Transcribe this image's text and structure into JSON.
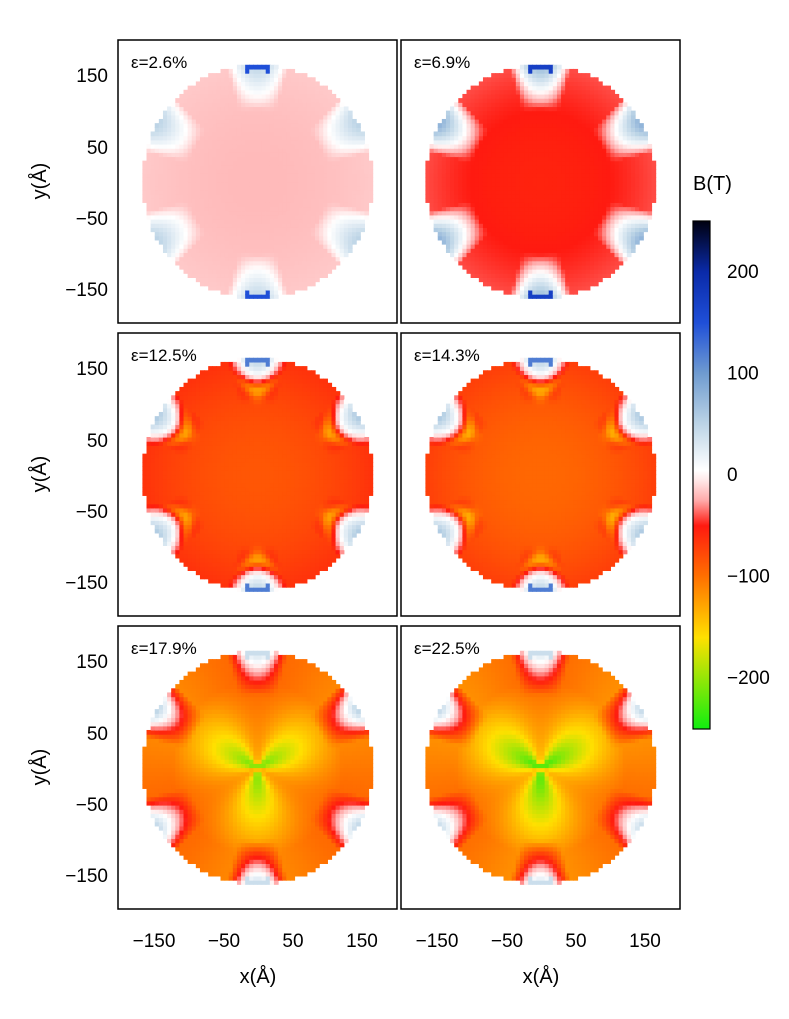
{
  "chart_data": {
    "type": "heatmap",
    "colorbar": {
      "title": "B(T)",
      "range": [
        -250,
        250
      ],
      "ticks": [
        200,
        100,
        0,
        -100,
        -200
      ],
      "tick_labels": [
        "200",
        "100",
        "0",
        "−100",
        "−200"
      ],
      "stops": [
        {
          "value": 250,
          "color": "#000010"
        },
        {
          "value": 200,
          "color": "#0a2aa8"
        },
        {
          "value": 150,
          "color": "#1f4fd8"
        },
        {
          "value": 100,
          "color": "#6f9bd0"
        },
        {
          "value": 50,
          "color": "#bcd4e6"
        },
        {
          "value": 5,
          "color": "#ffffff"
        },
        {
          "value": -5,
          "color": "#ffe8e8"
        },
        {
          "value": -25,
          "color": "#ffaaaa"
        },
        {
          "value": -50,
          "color": "#ff1a10"
        },
        {
          "value": -100,
          "color": "#ff7000"
        },
        {
          "value": -160,
          "color": "#ffe000"
        },
        {
          "value": -250,
          "color": "#10ee10"
        }
      ]
    },
    "xlabel": "x(Å)",
    "ylabel": "y(Å)",
    "xlim": [
      -200,
      200
    ],
    "ylim": [
      -200,
      200
    ],
    "xticks": [
      -150,
      -50,
      50,
      150
    ],
    "xtick_labels": [
      "−150",
      "−50",
      "50",
      "150"
    ],
    "yticks": [
      150,
      50,
      -50,
      -150
    ],
    "ytick_labels": [
      "150",
      "50",
      "−50",
      "−150"
    ],
    "disk_radius": 165,
    "panels": [
      {
        "label": "ε=2.6%",
        "strain": 2.6,
        "center_field": -20,
        "edge_field": 40,
        "tip_field": 150
      },
      {
        "label": "ε=6.9%",
        "strain": 6.9,
        "center_field": -55,
        "edge_field": 60,
        "tip_field": 170
      },
      {
        "label": "ε=12.5%",
        "strain": 12.5,
        "center_field": -85,
        "edge_field": 40,
        "tip_field": 120
      },
      {
        "label": "ε=14.3%",
        "strain": 14.3,
        "center_field": -95,
        "edge_field": 40,
        "tip_field": 120
      },
      {
        "label": "ε=17.9%",
        "strain": 17.9,
        "center_field": -220,
        "edge_field": 25,
        "tip_field": 40
      },
      {
        "label": "ε=22.5%",
        "strain": 22.5,
        "center_field": -240,
        "edge_field": 20,
        "tip_field": 40
      }
    ]
  }
}
